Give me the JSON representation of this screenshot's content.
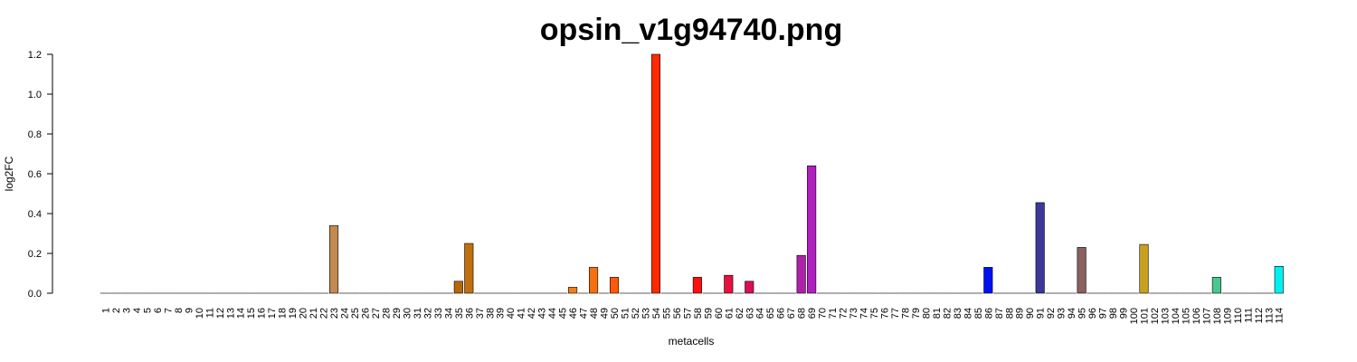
{
  "chart_data": {
    "type": "bar",
    "title": "opsin_v1g94740.png",
    "xlabel": "metacells",
    "ylabel": "log2FC",
    "ylim": [
      0,
      1.2
    ],
    "yticks": [
      "0.0",
      "0.2",
      "0.4",
      "0.6",
      "0.8",
      "1.0",
      "1.2"
    ],
    "categories": [
      "1",
      "2",
      "3",
      "4",
      "5",
      "6",
      "7",
      "8",
      "9",
      "10",
      "11",
      "12",
      "13",
      "14",
      "15",
      "16",
      "17",
      "18",
      "19",
      "20",
      "21",
      "22",
      "23",
      "24",
      "25",
      "26",
      "27",
      "28",
      "29",
      "30",
      "31",
      "32",
      "33",
      "34",
      "35",
      "36",
      "37",
      "38",
      "39",
      "40",
      "41",
      "42",
      "43",
      "44",
      "45",
      "46",
      "47",
      "48",
      "49",
      "50",
      "51",
      "52",
      "53",
      "54",
      "55",
      "56",
      "57",
      "58",
      "59",
      "60",
      "61",
      "62",
      "63",
      "64",
      "65",
      "66",
      "67",
      "68",
      "69",
      "70",
      "71",
      "72",
      "73",
      "74",
      "75",
      "76",
      "77",
      "78",
      "79",
      "80",
      "81",
      "82",
      "83",
      "84",
      "85",
      "86",
      "87",
      "88",
      "89",
      "90",
      "91",
      "92",
      "93",
      "94",
      "95",
      "96",
      "97",
      "98",
      "99",
      "100",
      "101",
      "102",
      "103",
      "104",
      "105",
      "106",
      "107",
      "108",
      "109",
      "110",
      "111",
      "112",
      "113",
      "114"
    ],
    "values": [
      0,
      0,
      0,
      0,
      0,
      0,
      0,
      0,
      0,
      0,
      0,
      0,
      0,
      0,
      0,
      0,
      0,
      0,
      0,
      0,
      0,
      0,
      0.34,
      0,
      0,
      0,
      0,
      0,
      0,
      0,
      0,
      0,
      0,
      0,
      0.06,
      0.25,
      0,
      0,
      0,
      0,
      0,
      0,
      0,
      0,
      0,
      0.03,
      0,
      0.13,
      0,
      0.08,
      0,
      0,
      0,
      1.2,
      0,
      0,
      0,
      0.08,
      0,
      0,
      0.09,
      0,
      0.06,
      0,
      0,
      0,
      0,
      0.19,
      0.64,
      0,
      0,
      0,
      0,
      0,
      0,
      0,
      0,
      0,
      0,
      0,
      0,
      0,
      0,
      0,
      0,
      0.13,
      0,
      0,
      0,
      0,
      0.455,
      0,
      0,
      0,
      0.23,
      0,
      0,
      0,
      0,
      0,
      0.245,
      0,
      0,
      0,
      0,
      0,
      0,
      0.08,
      0,
      0,
      0,
      0,
      0,
      0.135
    ],
    "colors": {
      "23": "#c08a52",
      "35": "#b8660c",
      "36": "#c0700c",
      "46": "#f08018",
      "48": "#f57010",
      "50": "#ff5a0c",
      "54": "#ff2a00",
      "58": "#ff1010",
      "61": "#e8103c",
      "63": "#d81050",
      "68": "#b020a8",
      "69": "#b020c0",
      "86": "#0010f0",
      "91": "#3c3898",
      "95": "#8a6060",
      "101": "#c8a020",
      "108": "#48c890",
      "114": "#00f0f0",
      "default": "#888888"
    }
  }
}
